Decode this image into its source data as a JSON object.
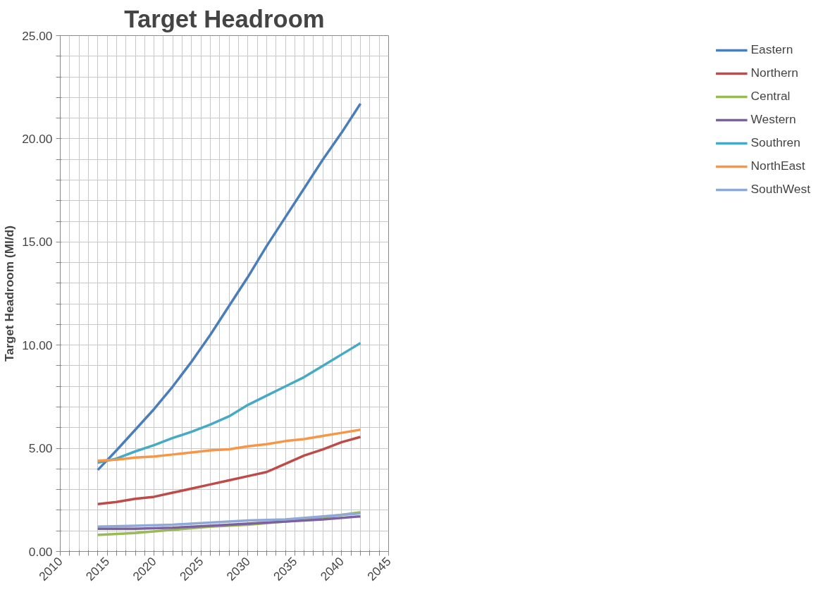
{
  "chart_data": {
    "type": "line",
    "title": "Target Headroom",
    "ylabel": "Target Headroom (Ml/d)",
    "xlim": [
      2010,
      2045
    ],
    "ylim": [
      0,
      25
    ],
    "xticks": [
      2010,
      {
        "value": 2011,
        "label": null
      },
      {
        "value": 2012,
        "label": null
      },
      {
        "value": 2013,
        "label": null
      },
      {
        "value": 2014,
        "label": null
      },
      2015,
      {
        "value": 2016,
        "label": null
      },
      {
        "value": 2017,
        "label": null
      },
      {
        "value": 2018,
        "label": null
      },
      {
        "value": 2019,
        "label": null
      },
      2020,
      {
        "value": 2021,
        "label": null
      },
      {
        "value": 2022,
        "label": null
      },
      {
        "value": 2023,
        "label": null
      },
      {
        "value": 2024,
        "label": null
      },
      2025,
      {
        "value": 2026,
        "label": null
      },
      {
        "value": 2027,
        "label": null
      },
      {
        "value": 2028,
        "label": null
      },
      {
        "value": 2029,
        "label": null
      },
      2030,
      {
        "value": 2031,
        "label": null
      },
      {
        "value": 2032,
        "label": null
      },
      {
        "value": 2033,
        "label": null
      },
      {
        "value": 2034,
        "label": null
      },
      2035,
      {
        "value": 2036,
        "label": null
      },
      {
        "value": 2037,
        "label": null
      },
      {
        "value": 2038,
        "label": null
      },
      {
        "value": 2039,
        "label": null
      },
      2040,
      {
        "value": 2041,
        "label": null
      },
      {
        "value": 2042,
        "label": null
      },
      {
        "value": 2043,
        "label": null
      },
      {
        "value": 2044,
        "label": null
      },
      2045
    ],
    "yticks": [
      {
        "value": 0,
        "label": "0.00"
      },
      {
        "value": 1,
        "label": null
      },
      {
        "value": 2,
        "label": null
      },
      {
        "value": 3,
        "label": null
      },
      {
        "value": 4,
        "label": null
      },
      {
        "value": 5,
        "label": "5.00"
      },
      {
        "value": 6,
        "label": null
      },
      {
        "value": 7,
        "label": null
      },
      {
        "value": 8,
        "label": null
      },
      {
        "value": 9,
        "label": null
      },
      {
        "value": 10,
        "label": "10.00"
      },
      {
        "value": 11,
        "label": null
      },
      {
        "value": 12,
        "label": null
      },
      {
        "value": 13,
        "label": null
      },
      {
        "value": 14,
        "label": null
      },
      {
        "value": 15,
        "label": "15.00"
      },
      {
        "value": 16,
        "label": null
      },
      {
        "value": 17,
        "label": null
      },
      {
        "value": 18,
        "label": null
      },
      {
        "value": 19,
        "label": null
      },
      {
        "value": 20,
        "label": "20.00"
      },
      {
        "value": 21,
        "label": null
      },
      {
        "value": 22,
        "label": null
      },
      {
        "value": 23,
        "label": null
      },
      {
        "value": 24,
        "label": null
      },
      {
        "value": 25,
        "label": "25.00"
      }
    ],
    "grid": true,
    "legend": "right",
    "marker": "none",
    "line_style": "solid",
    "series": [
      {
        "name": "Eastern",
        "color": "#4a7ebb",
        "x": [
          2014,
          2016,
          2018,
          2020,
          2022,
          2024,
          2026,
          2028,
          2030,
          2032,
          2034,
          2036,
          2038,
          2040,
          2042
        ],
        "values": [
          3.95,
          4.9,
          5.9,
          6.9,
          8.0,
          9.2,
          10.5,
          11.9,
          13.3,
          14.8,
          16.2,
          17.6,
          19.0,
          20.3,
          21.7
        ]
      },
      {
        "name": "Northern",
        "color": "#be4b48",
        "x": [
          2014,
          2016,
          2018,
          2020,
          2022,
          2024,
          2026,
          2028,
          2030,
          2032,
          2034,
          2036,
          2038,
          2040,
          2042
        ],
        "values": [
          2.3,
          2.4,
          2.55,
          2.65,
          2.85,
          3.05,
          3.25,
          3.45,
          3.65,
          3.85,
          4.25,
          4.65,
          4.95,
          5.3,
          5.55
        ]
      },
      {
        "name": "Central",
        "color": "#98b954",
        "x": [
          2014,
          2018,
          2022,
          2026,
          2030,
          2034,
          2038,
          2042
        ],
        "values": [
          0.8,
          0.9,
          1.05,
          1.2,
          1.3,
          1.45,
          1.65,
          1.9
        ]
      },
      {
        "name": "Western",
        "color": "#7d60a0",
        "x": [
          2014,
          2018,
          2022,
          2026,
          2030,
          2034,
          2038,
          2042
        ],
        "values": [
          1.1,
          1.1,
          1.15,
          1.25,
          1.35,
          1.45,
          1.55,
          1.7
        ]
      },
      {
        "name": "Southren",
        "color": "#46aac5",
        "x": [
          2014,
          2016,
          2018,
          2020,
          2022,
          2024,
          2026,
          2028,
          2030,
          2032,
          2034,
          2036,
          2038,
          2040,
          2042
        ],
        "values": [
          4.3,
          4.5,
          4.85,
          5.15,
          5.5,
          5.8,
          6.15,
          6.55,
          7.1,
          7.55,
          8.0,
          8.45,
          9.0,
          9.55,
          10.1
        ]
      },
      {
        "name": "NorthEast",
        "color": "#f79646",
        "x": [
          2014,
          2016,
          2018,
          2020,
          2022,
          2024,
          2026,
          2028,
          2030,
          2032,
          2034,
          2036,
          2038,
          2040,
          2042
        ],
        "values": [
          4.4,
          4.45,
          4.55,
          4.6,
          4.7,
          4.8,
          4.9,
          4.95,
          5.1,
          5.2,
          5.35,
          5.45,
          5.6,
          5.75,
          5.9
        ]
      },
      {
        "name": "SouthWest",
        "color": "#8fa9d6",
        "x": [
          2014,
          2018,
          2022,
          2026,
          2030,
          2034,
          2038,
          2042
        ],
        "values": [
          1.2,
          1.25,
          1.3,
          1.4,
          1.5,
          1.55,
          1.7,
          1.85
        ]
      }
    ]
  }
}
